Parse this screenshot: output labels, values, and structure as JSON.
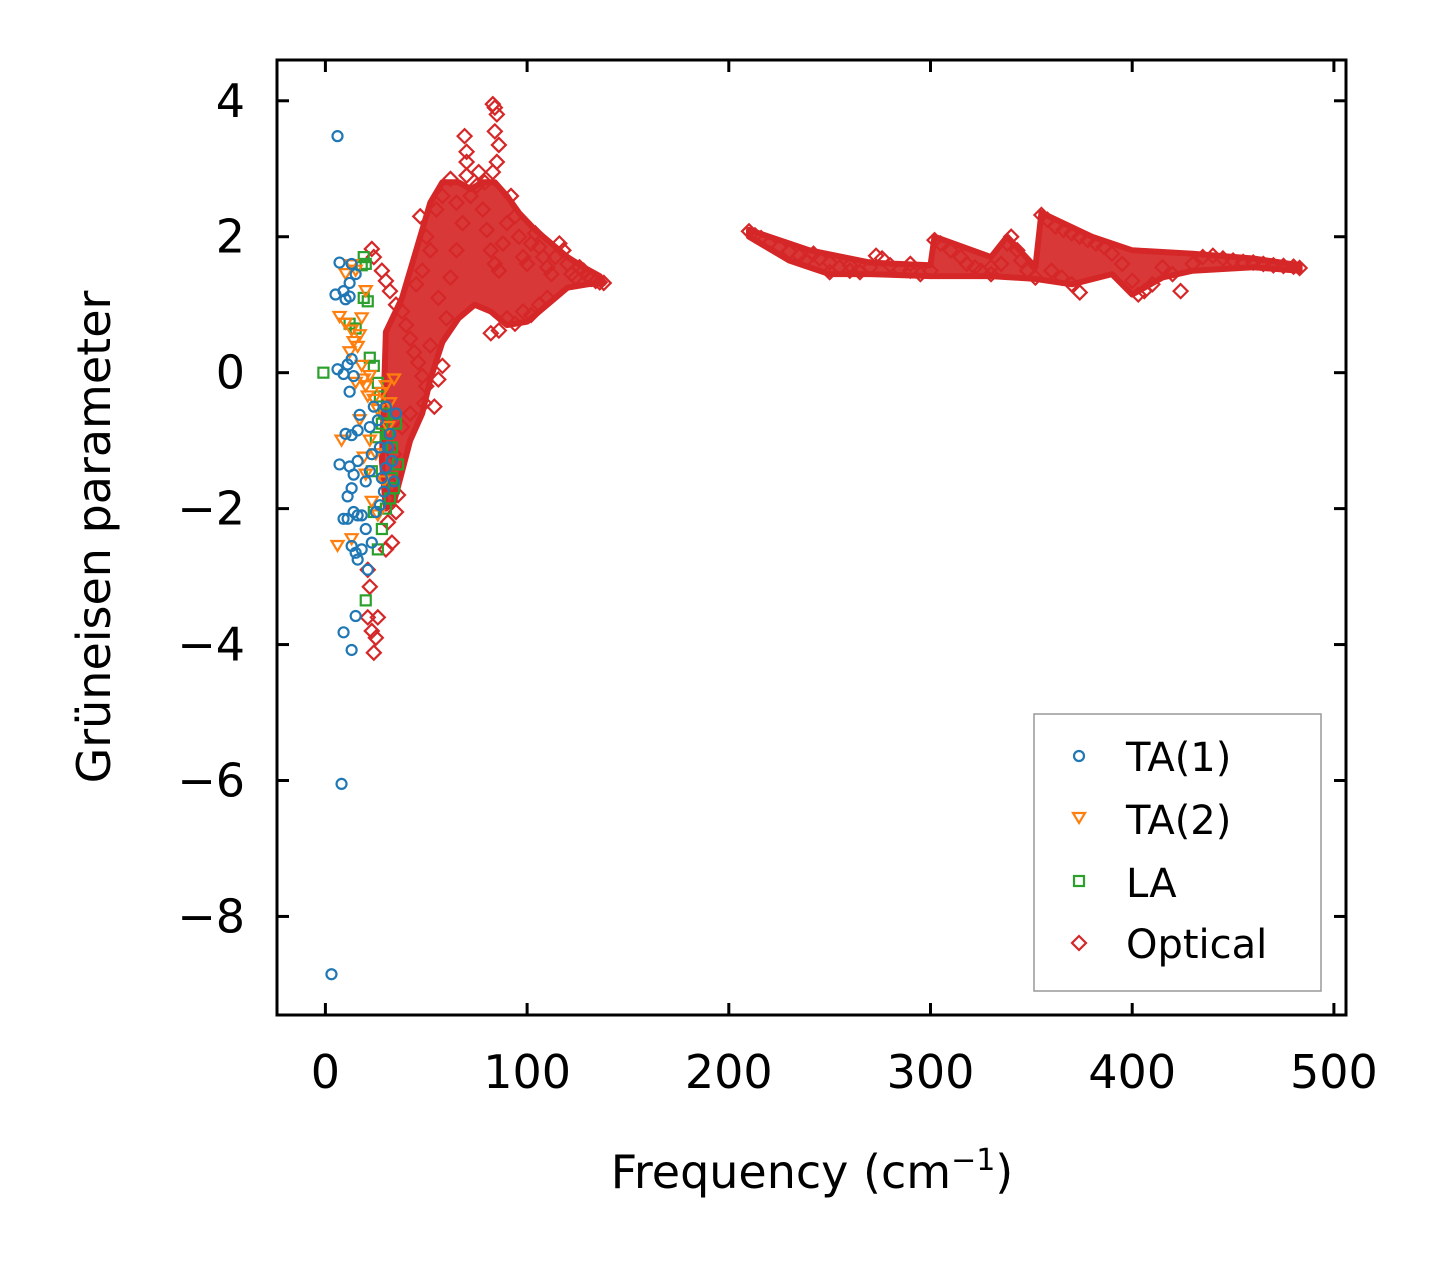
{
  "chart_data": {
    "type": "scatter",
    "title": "",
    "xlabel": "Frequency (cm",
    "xlabel_sup": "−1",
    "xlabel_close": ")",
    "ylabel": "Grüneisen parameter",
    "xlim": [
      -24,
      506
    ],
    "ylim": [
      -9.45,
      4.6
    ],
    "xticks": [
      0,
      100,
      200,
      300,
      400,
      500
    ],
    "xtick_labels": [
      "0",
      "100",
      "200",
      "300",
      "400",
      "500"
    ],
    "yticks": [
      4,
      2,
      0,
      -2,
      -4,
      -6,
      -8
    ],
    "ytick_labels": [
      "4",
      "2",
      "0",
      "−2",
      "−4",
      "−6",
      "−8"
    ],
    "grid": false,
    "legend_position": "lower-right",
    "series": [
      {
        "name": "TA(1)",
        "marker": "circle",
        "color": "#1f77b4",
        "points": [
          [
            6,
            3.48
          ],
          [
            3,
            -8.85
          ],
          [
            8,
            -6.05
          ],
          [
            13,
            -4.08
          ],
          [
            9,
            -3.82
          ],
          [
            15,
            -3.58
          ],
          [
            7,
            1.62
          ],
          [
            13,
            1.6
          ],
          [
            5,
            1.15
          ],
          [
            9,
            1.2
          ],
          [
            12,
            1.12
          ],
          [
            15,
            1.45
          ],
          [
            12,
            1.32
          ],
          [
            10,
            1.08
          ],
          [
            6,
            0.05
          ],
          [
            9,
            -0.02
          ],
          [
            11,
            0.12
          ],
          [
            13,
            0.2
          ],
          [
            12,
            -0.28
          ],
          [
            14,
            -0.05
          ],
          [
            10,
            -0.9
          ],
          [
            13,
            -0.92
          ],
          [
            16,
            -0.85
          ],
          [
            17,
            -0.62
          ],
          [
            7,
            -1.35
          ],
          [
            12,
            -1.38
          ],
          [
            14,
            -1.5
          ],
          [
            16,
            -1.3
          ],
          [
            11,
            -1.82
          ],
          [
            13,
            -1.7
          ],
          [
            9,
            -2.15
          ],
          [
            11,
            -2.15
          ],
          [
            14,
            -2.05
          ],
          [
            16,
            -2.1
          ],
          [
            18,
            -2.1
          ],
          [
            13,
            -2.55
          ],
          [
            15,
            -2.65
          ],
          [
            16,
            -2.75
          ],
          [
            18,
            -2.6
          ],
          [
            20,
            -2.3
          ],
          [
            20,
            -1.6
          ],
          [
            22,
            -1.45
          ],
          [
            23,
            -1.2
          ],
          [
            22,
            -0.8
          ],
          [
            24,
            -0.5
          ],
          [
            26,
            -0.7
          ],
          [
            27,
            -1.1
          ],
          [
            28,
            -1.55
          ],
          [
            29,
            -1.75
          ],
          [
            30,
            -1.4
          ],
          [
            31,
            -1.1
          ],
          [
            32,
            -0.9
          ],
          [
            33,
            -1.3
          ],
          [
            34,
            -1.6
          ],
          [
            27,
            -1.95
          ],
          [
            25,
            -2.05
          ],
          [
            23,
            -2.5
          ],
          [
            21,
            -2.9
          ],
          [
            30,
            -0.5
          ],
          [
            35,
            -0.6
          ]
        ]
      },
      {
        "name": "TA(2)",
        "marker": "triangle-down",
        "color": "#ff7f0e",
        "points": [
          [
            8,
            -1.0
          ],
          [
            6,
            -2.55
          ],
          [
            13,
            -2.45
          ],
          [
            10,
            1.45
          ],
          [
            13,
            1.58
          ],
          [
            15,
            1.5
          ],
          [
            7,
            0.82
          ],
          [
            10,
            0.72
          ],
          [
            13,
            0.62
          ],
          [
            14,
            0.45
          ],
          [
            16,
            0.38
          ],
          [
            17,
            0.55
          ],
          [
            18,
            0.1
          ],
          [
            19,
            -0.1
          ],
          [
            20,
            -0.2
          ],
          [
            21,
            -0.35
          ],
          [
            22,
            -0.05
          ],
          [
            24,
            -0.4
          ],
          [
            26,
            -0.55
          ],
          [
            28,
            -0.3
          ],
          [
            30,
            -0.2
          ],
          [
            32,
            -0.45
          ],
          [
            34,
            -0.1
          ],
          [
            22,
            -1.0
          ],
          [
            25,
            -1.2
          ],
          [
            20,
            -1.5
          ],
          [
            23,
            -1.9
          ],
          [
            26,
            -2.1
          ],
          [
            29,
            -1.6
          ],
          [
            31,
            -0.8
          ],
          [
            18,
            0.8
          ],
          [
            20,
            1.2
          ],
          [
            12,
            0.3
          ],
          [
            15,
            -0.15
          ],
          [
            17,
            -0.7
          ],
          [
            19,
            -1.25
          ]
        ]
      },
      {
        "name": "LA",
        "marker": "square",
        "color": "#2ca02c",
        "points": [
          [
            -1,
            0.0
          ],
          [
            19,
            1.7
          ],
          [
            20,
            1.6
          ],
          [
            18,
            1.58
          ],
          [
            19,
            1.1
          ],
          [
            21,
            1.05
          ],
          [
            12,
            0.72
          ],
          [
            15,
            0.65
          ],
          [
            22,
            0.22
          ],
          [
            24,
            0.1
          ],
          [
            26,
            -0.15
          ],
          [
            27,
            -0.35
          ],
          [
            29,
            -0.6
          ],
          [
            31,
            -0.9
          ],
          [
            33,
            -1.1
          ],
          [
            35,
            -0.75
          ],
          [
            36,
            -1.35
          ],
          [
            34,
            -1.7
          ],
          [
            32,
            -1.85
          ],
          [
            30,
            -2.0
          ],
          [
            28,
            -2.3
          ],
          [
            26,
            -2.6
          ],
          [
            24,
            -2.05
          ],
          [
            20,
            -3.35
          ],
          [
            23,
            -1.45
          ],
          [
            25,
            -0.95
          ],
          [
            28,
            -0.75
          ],
          [
            33,
            -1.55
          ]
        ]
      },
      {
        "name": "Optical",
        "marker": "diamond",
        "color": "#d62728",
        "points": [
          [
            69,
            3.48
          ],
          [
            70,
            3.25
          ],
          [
            70,
            3.1
          ],
          [
            83,
            3.95
          ],
          [
            84,
            3.9
          ],
          [
            85,
            3.8
          ],
          [
            84,
            3.55
          ],
          [
            86,
            3.35
          ],
          [
            85,
            3.1
          ],
          [
            83,
            2.95
          ],
          [
            23,
            1.82
          ],
          [
            24,
            1.7
          ],
          [
            28,
            1.5
          ],
          [
            30,
            1.35
          ],
          [
            32,
            1.2
          ],
          [
            35,
            1.0
          ],
          [
            38,
            0.9
          ],
          [
            40,
            0.7
          ],
          [
            42,
            0.5
          ],
          [
            44,
            0.3
          ],
          [
            46,
            0.15
          ],
          [
            48,
            -0.05
          ],
          [
            50,
            -0.2
          ],
          [
            49,
            -0.45
          ],
          [
            42,
            -0.6
          ],
          [
            38,
            -0.8
          ],
          [
            34,
            -1.2
          ],
          [
            33,
            -1.65
          ],
          [
            31,
            -2.2
          ],
          [
            33,
            -2.5
          ],
          [
            30,
            -2.6
          ],
          [
            21,
            -2.9
          ],
          [
            22,
            -3.15
          ],
          [
            21,
            -3.6
          ],
          [
            26,
            -3.6
          ],
          [
            23,
            -3.8
          ],
          [
            25,
            -3.9
          ],
          [
            24,
            -4.12
          ],
          [
            35,
            -2.05
          ],
          [
            36,
            -1.8
          ],
          [
            60,
            0.8
          ],
          [
            62,
            1.4
          ],
          [
            65,
            1.8
          ],
          [
            68,
            2.2
          ],
          [
            72,
            2.6
          ],
          [
            75,
            2.75
          ],
          [
            78,
            2.4
          ],
          [
            80,
            2.1
          ],
          [
            82,
            1.8
          ],
          [
            84,
            1.6
          ],
          [
            86,
            1.5
          ],
          [
            88,
            1.9
          ],
          [
            90,
            2.2
          ],
          [
            92,
            2.6
          ],
          [
            94,
            2.3
          ],
          [
            96,
            2.0
          ],
          [
            98,
            1.7
          ],
          [
            100,
            1.6
          ],
          [
            102,
            1.9
          ],
          [
            104,
            2.05
          ],
          [
            106,
            1.85
          ],
          [
            108,
            1.7
          ],
          [
            110,
            1.55
          ],
          [
            112,
            1.45
          ],
          [
            114,
            1.7
          ],
          [
            116,
            1.9
          ],
          [
            118,
            1.8
          ],
          [
            120,
            1.6
          ],
          [
            122,
            1.45
          ],
          [
            124,
            1.4
          ],
          [
            126,
            1.55
          ],
          [
            128,
            1.5
          ],
          [
            130,
            1.42
          ],
          [
            132,
            1.38
          ],
          [
            134,
            1.35
          ],
          [
            136,
            1.33
          ],
          [
            138,
            1.32
          ],
          [
            82,
            0.58
          ],
          [
            86,
            0.62
          ],
          [
            90,
            0.8
          ],
          [
            94,
            0.72
          ],
          [
            98,
            0.9
          ],
          [
            102,
            0.85
          ],
          [
            106,
            1.0
          ],
          [
            110,
            1.1
          ],
          [
            56,
            -0.1
          ],
          [
            58,
            0.1
          ],
          [
            54,
            -0.5
          ],
          [
            52,
            0.4
          ],
          [
            56,
            1.1
          ],
          [
            52,
            1.8
          ],
          [
            55,
            2.4
          ],
          [
            58,
            2.6
          ],
          [
            62,
            2.85
          ],
          [
            65,
            2.5
          ],
          [
            70,
            2.9
          ],
          [
            76,
            2.95
          ],
          [
            79,
            2.8
          ],
          [
            45,
            1.3
          ],
          [
            48,
            1.5
          ],
          [
            50,
            2.0
          ],
          [
            47,
            2.3
          ],
          [
            210,
            2.08
          ],
          [
            213,
            2.02
          ],
          [
            216,
            1.98
          ],
          [
            220,
            1.9
          ],
          [
            225,
            1.85
          ],
          [
            230,
            1.78
          ],
          [
            235,
            1.72
          ],
          [
            238,
            1.65
          ],
          [
            242,
            1.75
          ],
          [
            245,
            1.68
          ],
          [
            250,
            1.62
          ],
          [
            255,
            1.55
          ],
          [
            260,
            1.5
          ],
          [
            265,
            1.48
          ],
          [
            270,
            1.55
          ],
          [
            273,
            1.72
          ],
          [
            276,
            1.68
          ],
          [
            280,
            1.58
          ],
          [
            285,
            1.52
          ],
          [
            290,
            1.5
          ],
          [
            295,
            1.45
          ],
          [
            300,
            1.5
          ],
          [
            302,
            1.95
          ],
          [
            305,
            1.9
          ],
          [
            310,
            1.8
          ],
          [
            315,
            1.7
          ],
          [
            318,
            1.6
          ],
          [
            322,
            1.55
          ],
          [
            325,
            1.5
          ],
          [
            330,
            1.55
          ],
          [
            335,
            1.6
          ],
          [
            338,
            1.9
          ],
          [
            340,
            2.0
          ],
          [
            343,
            1.8
          ],
          [
            345,
            1.65
          ],
          [
            348,
            1.5
          ],
          [
            352,
            1.4
          ],
          [
            355,
            2.32
          ],
          [
            358,
            2.25
          ],
          [
            362,
            2.15
          ],
          [
            366,
            2.1
          ],
          [
            370,
            2.05
          ],
          [
            374,
            2.0
          ],
          [
            378,
            1.95
          ],
          [
            382,
            1.9
          ],
          [
            386,
            1.85
          ],
          [
            390,
            1.75
          ],
          [
            395,
            1.6
          ],
          [
            400,
            1.35
          ],
          [
            403,
            1.15
          ],
          [
            406,
            1.2
          ],
          [
            410,
            1.3
          ],
          [
            415,
            1.55
          ],
          [
            420,
            1.45
          ],
          [
            424,
            1.2
          ],
          [
            430,
            1.6
          ],
          [
            435,
            1.7
          ],
          [
            440,
            1.72
          ],
          [
            445,
            1.68
          ],
          [
            450,
            1.65
          ],
          [
            455,
            1.63
          ],
          [
            460,
            1.62
          ],
          [
            465,
            1.6
          ],
          [
            470,
            1.58
          ],
          [
            475,
            1.57
          ],
          [
            480,
            1.56
          ],
          [
            483,
            1.54
          ],
          [
            360,
            1.5
          ],
          [
            365,
            1.4
          ],
          [
            370,
            1.3
          ],
          [
            374,
            1.18
          ],
          [
            250,
            1.48
          ],
          [
            330,
            1.45
          ],
          [
            290,
            1.6
          ],
          [
            260,
            1.58
          ]
        ]
      }
    ]
  },
  "legend": {
    "entries": [
      "TA(1)",
      "TA(2)",
      "LA",
      "Optical"
    ]
  }
}
